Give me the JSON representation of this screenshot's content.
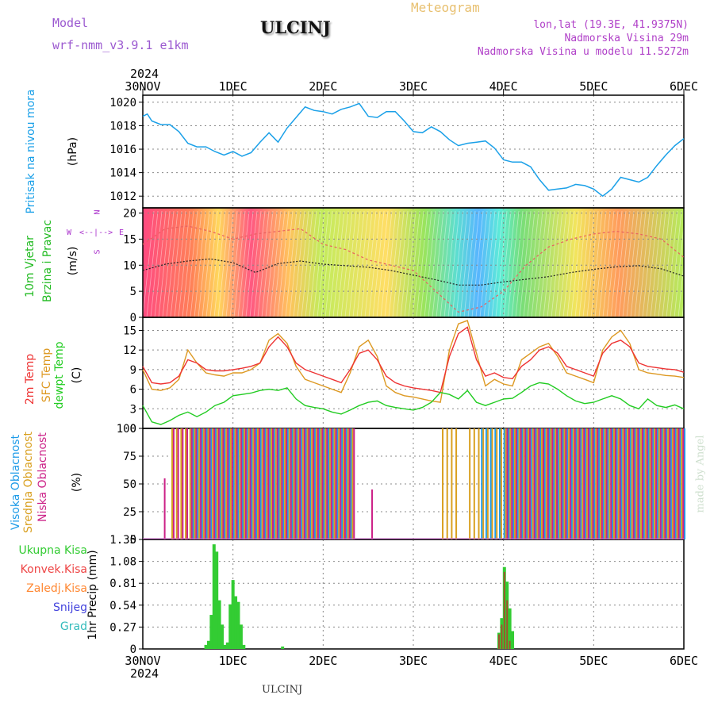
{
  "header": {
    "model_label": "Model",
    "model_name": "wrf-nmm_v3.9.1 e1km",
    "station": "ULCINJ",
    "meteogram_label": "Meteogram",
    "lonlat": "lon,lat (19.3E, 41.9375N)",
    "elevation": "Nadmorska Visina 29m",
    "model_elevation": "Nadmorska Visina u modelu 11.5272m"
  },
  "footer": {
    "station": "ULCINJ",
    "credit": "made by Angel"
  },
  "colors": {
    "pressure": "#1aa0e8",
    "wind_label": "#22bb22",
    "wind_dir": "#aa33cc",
    "temp2m": "#ee3333",
    "sfc_temp": "#dd9922",
    "dewpt": "#22cc22",
    "high_cloud": "#1e9be8",
    "mid_cloud": "#d9a020",
    "low_cloud": "#cc2288",
    "total_precip": "#33cc33",
    "conv_precip": "#ee4444",
    "frozen_precip": "#ff8833",
    "snow": "#4444dd",
    "hail": "#33bbbb"
  },
  "panels": {
    "pressure": {
      "title": "Pritisak na nivou mora",
      "unit": "(hPa)"
    },
    "wind": {
      "title_line1": "10m Vjetar",
      "title_line2": "Brzina i Pravac",
      "unit": "(m/s)",
      "compass_n": "N",
      "compass_s": "S",
      "compass_e": "E",
      "compass_w": "W"
    },
    "temp": {
      "title_2m": "2m Temp",
      "title_sfc": "SFC Temp",
      "title_dewpt": "dewpt Temp",
      "unit": "(C)"
    },
    "cloud": {
      "title_high": "Visoka Oblacnost",
      "title_mid": "Srednja Oblacnost",
      "title_low": "Niska Oblacnost",
      "unit": "(%)"
    },
    "precip": {
      "title": "1hr Precip (mm)"
    }
  },
  "precip_legend": [
    "Ukupna Kisa",
    "Konvek.Kisa",
    "Zaledj.Kisa",
    "Snijeg",
    "Grad"
  ],
  "chart_data": [
    {
      "type": "line",
      "name": "pressure",
      "x_ticks": [
        "30NOV",
        "1DEC",
        "2DEC",
        "3DEC",
        "4DEC",
        "5DEC",
        "6DEC"
      ],
      "year": "2024",
      "ylim": [
        1011,
        1020.6
      ],
      "y_ticks": [
        1012,
        1014,
        1016,
        1018,
        1020
      ],
      "grid": true,
      "x_days": [
        0,
        0.05,
        0.1,
        0.2,
        0.3,
        0.4,
        0.5,
        0.6,
        0.7,
        0.8,
        0.9,
        1.0,
        1.1,
        1.2,
        1.3,
        1.4,
        1.5,
        1.6,
        1.7,
        1.8,
        1.9,
        2.0,
        2.1,
        2.2,
        2.3,
        2.4,
        2.5,
        2.6,
        2.7,
        2.8,
        2.9,
        3.0,
        3.1,
        3.2,
        3.3,
        3.4,
        3.5,
        3.6,
        3.7,
        3.8,
        3.9,
        4.0,
        4.1,
        4.2,
        4.3,
        4.4,
        4.5,
        4.6,
        4.7,
        4.8,
        4.9,
        5.0,
        5.1,
        5.2,
        5.3,
        5.4,
        5.5,
        5.6,
        5.7,
        5.8,
        5.9,
        6.0
      ],
      "values": [
        1018.8,
        1019.0,
        1018.4,
        1018.1,
        1018.1,
        1017.5,
        1016.5,
        1016.2,
        1016.2,
        1015.8,
        1015.5,
        1015.8,
        1015.4,
        1015.7,
        1016.6,
        1017.4,
        1016.6,
        1017.8,
        1018.7,
        1019.6,
        1019.3,
        1019.2,
        1019.0,
        1019.4,
        1019.6,
        1019.9,
        1018.8,
        1018.7,
        1019.2,
        1019.2,
        1018.4,
        1017.5,
        1017.4,
        1017.9,
        1017.5,
        1016.8,
        1016.3,
        1016.5,
        1016.6,
        1016.7,
        1016.1,
        1015.1,
        1014.9,
        1014.9,
        1014.5,
        1013.4,
        1012.5,
        1012.6,
        1012.7,
        1013.0,
        1012.9,
        1012.6,
        1012.0,
        1012.6,
        1013.6,
        1013.4,
        1013.2,
        1013.6,
        1014.6,
        1015.5,
        1016.3,
        1016.9
      ]
    },
    {
      "type": "line",
      "name": "wind",
      "ylim": [
        0,
        21
      ],
      "y_ticks": [
        0,
        5,
        10,
        15,
        20
      ],
      "grid": true,
      "x_days": [
        0,
        0.25,
        0.5,
        0.75,
        1.0,
        1.25,
        1.5,
        1.75,
        2.0,
        2.25,
        2.5,
        2.75,
        3.0,
        3.25,
        3.5,
        3.75,
        4.0,
        4.25,
        4.5,
        4.75,
        5.0,
        5.25,
        5.5,
        5.75,
        6.0
      ],
      "speed": [
        9.0,
        10.2,
        10.8,
        11.2,
        10.5,
        8.6,
        10.3,
        10.8,
        10.2,
        9.9,
        9.6,
        9.0,
        8.1,
        7.2,
        6.2,
        6.2,
        6.8,
        7.3,
        7.8,
        8.6,
        9.2,
        9.7,
        9.9,
        9.3,
        7.9
      ],
      "gust": [
        14.0,
        17.0,
        17.5,
        16.5,
        15.0,
        16.0,
        16.5,
        17.0,
        14.0,
        13.0,
        11.0,
        10.0,
        9.0,
        5.0,
        1.0,
        2.0,
        5.0,
        10.0,
        13.5,
        15.0,
        16.0,
        16.5,
        16.0,
        15.0,
        11.5
      ]
    },
    {
      "type": "line",
      "name": "temperature",
      "ylim": [
        0,
        17
      ],
      "y_ticks": [
        0,
        3,
        6,
        9,
        12,
        15
      ],
      "grid": true,
      "x_days": [
        0,
        0.1,
        0.2,
        0.3,
        0.4,
        0.5,
        0.6,
        0.7,
        0.8,
        0.9,
        1.0,
        1.1,
        1.2,
        1.3,
        1.4,
        1.5,
        1.6,
        1.7,
        1.8,
        1.9,
        2.0,
        2.1,
        2.2,
        2.3,
        2.4,
        2.5,
        2.6,
        2.7,
        2.8,
        2.9,
        3.0,
        3.1,
        3.2,
        3.3,
        3.4,
        3.5,
        3.6,
        3.7,
        3.8,
        3.9,
        4.0,
        4.1,
        4.2,
        4.3,
        4.4,
        4.5,
        4.6,
        4.7,
        4.8,
        4.9,
        5.0,
        5.1,
        5.2,
        5.3,
        5.4,
        5.5,
        5.6,
        5.7,
        5.8,
        5.9,
        6.0
      ],
      "temp2m": [
        9.5,
        7.0,
        6.8,
        7.0,
        8.0,
        10.5,
        10.0,
        9.0,
        8.8,
        8.8,
        9.0,
        9.2,
        9.5,
        10.0,
        12.5,
        14.0,
        12.5,
        10.0,
        9.0,
        8.5,
        8.0,
        7.5,
        7.0,
        9.0,
        11.5,
        12.0,
        10.5,
        8.0,
        7.0,
        6.5,
        6.2,
        6.0,
        5.8,
        5.5,
        11.0,
        14.5,
        15.5,
        10.5,
        8.0,
        8.5,
        7.8,
        7.6,
        9.5,
        10.5,
        12.0,
        12.5,
        11.5,
        9.5,
        9.0,
        8.5,
        8.0,
        11.5,
        13.0,
        13.5,
        12.5,
        10.0,
        9.5,
        9.3,
        9.1,
        9.0,
        8.6
      ],
      "sfc_temp": [
        9.0,
        6.0,
        5.8,
        6.2,
        7.5,
        12.0,
        10.0,
        8.5,
        8.2,
        8.0,
        8.5,
        8.5,
        9.0,
        10.0,
        13.5,
        14.5,
        13.0,
        9.5,
        7.5,
        7.0,
        6.5,
        6.0,
        5.5,
        8.5,
        12.5,
        13.5,
        11.0,
        6.5,
        5.5,
        5.0,
        4.8,
        4.5,
        4.2,
        4.0,
        12.0,
        16.0,
        16.5,
        11.5,
        6.5,
        7.5,
        6.8,
        6.5,
        10.5,
        11.5,
        12.5,
        13.0,
        11.0,
        8.5,
        8.0,
        7.5,
        7.0,
        12.0,
        14.0,
        15.0,
        13.0,
        9.0,
        8.5,
        8.3,
        8.1,
        8.0,
        7.8
      ],
      "dewpt": [
        3.5,
        1.0,
        0.6,
        1.2,
        2.0,
        2.5,
        1.8,
        2.5,
        3.5,
        4.0,
        5.0,
        5.2,
        5.4,
        5.8,
        6.0,
        5.8,
        6.2,
        4.5,
        3.5,
        3.2,
        3.0,
        2.5,
        2.2,
        2.8,
        3.5,
        4.0,
        4.2,
        3.5,
        3.2,
        3.0,
        2.8,
        3.2,
        4.0,
        5.5,
        5.2,
        4.5,
        5.8,
        4.0,
        3.5,
        4.0,
        4.5,
        4.6,
        5.5,
        6.5,
        7.0,
        6.8,
        6.0,
        5.0,
        4.2,
        3.8,
        4.0,
        4.5,
        5.0,
        4.5,
        3.5,
        3.0,
        4.5,
        3.5,
        3.2,
        3.6,
        3.0
      ]
    },
    {
      "type": "bar",
      "name": "cloud_cover",
      "ylim": [
        0,
        100
      ],
      "y_ticks": [
        0,
        25,
        50,
        75,
        100
      ],
      "grid": true,
      "high_segments": [
        [
          0.55,
          1.55,
          100
        ],
        [
          1.55,
          2.3,
          100
        ],
        [
          3.75,
          4.35,
          100
        ],
        [
          4.35,
          6.0,
          100
        ]
      ],
      "mid_segments": [
        [
          0.3,
          0.55,
          100
        ],
        [
          0.55,
          2.35,
          100
        ],
        [
          3.3,
          3.5,
          100
        ],
        [
          3.6,
          6.0,
          100
        ]
      ],
      "low_segments": [
        [
          0.2,
          0.25,
          55
        ],
        [
          0.3,
          2.35,
          100
        ],
        [
          2.5,
          2.55,
          45
        ],
        [
          4.0,
          6.0,
          100
        ]
      ]
    },
    {
      "type": "bar",
      "name": "precipitation",
      "ylim": [
        0,
        1.35
      ],
      "y_ticks": [
        0,
        0.27,
        0.54,
        0.81,
        1.08,
        1.35
      ],
      "grid": true,
      "x_days": [
        0.7,
        0.73,
        0.76,
        0.79,
        0.82,
        0.85,
        0.88,
        0.91,
        0.94,
        0.97,
        1.0,
        1.03,
        1.06,
        1.09,
        1.12,
        1.55,
        3.95,
        3.98,
        4.01,
        4.04,
        4.07,
        4.1
      ],
      "total": [
        0.05,
        0.1,
        0.42,
        1.29,
        1.2,
        0.6,
        0.3,
        0.05,
        0.08,
        0.55,
        0.85,
        0.65,
        0.58,
        0.3,
        0.05,
        0.03,
        0.2,
        0.38,
        1.01,
        0.83,
        0.5,
        0.22
      ],
      "convective": [
        0,
        0,
        0,
        0,
        0,
        0,
        0,
        0,
        0,
        0,
        0,
        0,
        0,
        0,
        0,
        0,
        0.18,
        0.3,
        0.95,
        0.6,
        0.1,
        0
      ]
    }
  ]
}
